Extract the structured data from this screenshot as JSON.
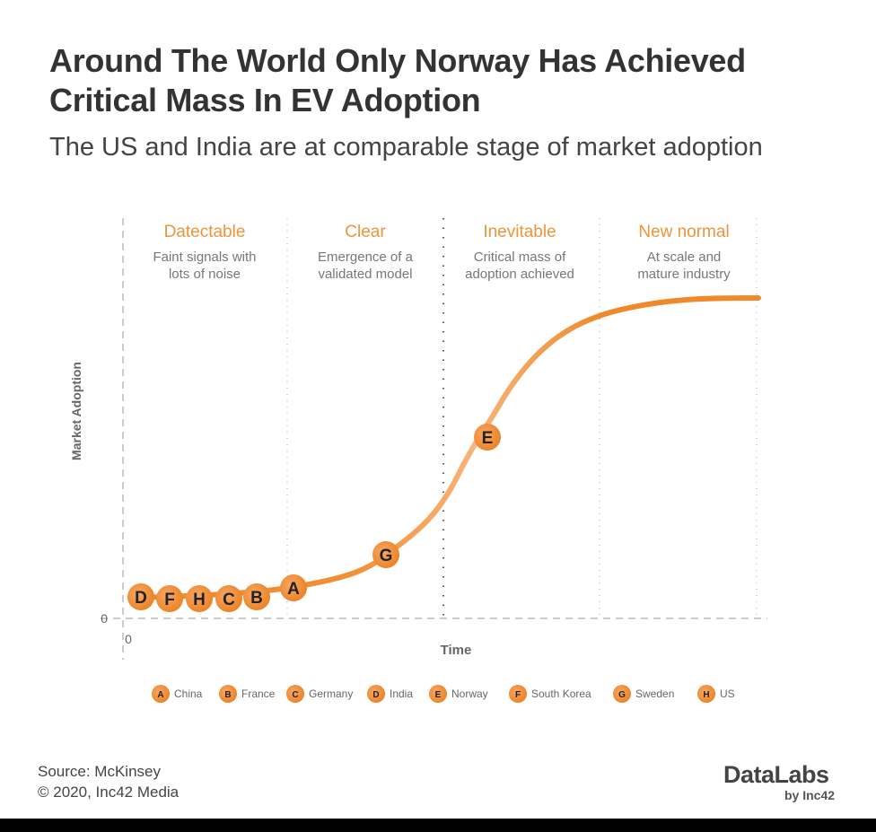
{
  "title": "Around The World Only Norway Has Achieved Critical Mass In EV Adoption",
  "subtitle": "The US and India are at comparable stage of market adoption",
  "chart_data": {
    "type": "line",
    "xlabel": "Time",
    "ylabel": "Market Adoption",
    "x_tick": "0",
    "y_tick": "0",
    "stages": [
      {
        "name": "Datectable",
        "desc1": "Faint signals with",
        "desc2": "lots of noise"
      },
      {
        "name": "Clear",
        "desc1": "Emergence of a",
        "desc2": "validated model"
      },
      {
        "name": "Inevitable",
        "desc1": "Critical mass of",
        "desc2": "adoption achieved"
      },
      {
        "name": "New normal",
        "desc1": "At scale and",
        "desc2": "mature industry"
      }
    ],
    "markers_order_along_curve": [
      "D",
      "F",
      "H",
      "C",
      "B",
      "A",
      "G",
      "E"
    ],
    "legend": [
      {
        "letter": "A",
        "country": "China"
      },
      {
        "letter": "B",
        "country": "France"
      },
      {
        "letter": "C",
        "country": "Germany"
      },
      {
        "letter": "D",
        "country": "India"
      },
      {
        "letter": "E",
        "country": "Norway"
      },
      {
        "letter": "F",
        "country": "South Korea"
      },
      {
        "letter": "G",
        "country": "Sweden"
      },
      {
        "letter": "H",
        "country": "US"
      }
    ],
    "colors": {
      "curve": "#f0892a",
      "curve_light": "#f8b47c",
      "stage_label": "#f0943a",
      "marker": "#f0892a"
    }
  },
  "footer": {
    "source": "Source: McKinsey",
    "copyright": "© 2020, Inc42 Media",
    "logo": "DataLabs",
    "logo_sub": "by Inc42"
  }
}
